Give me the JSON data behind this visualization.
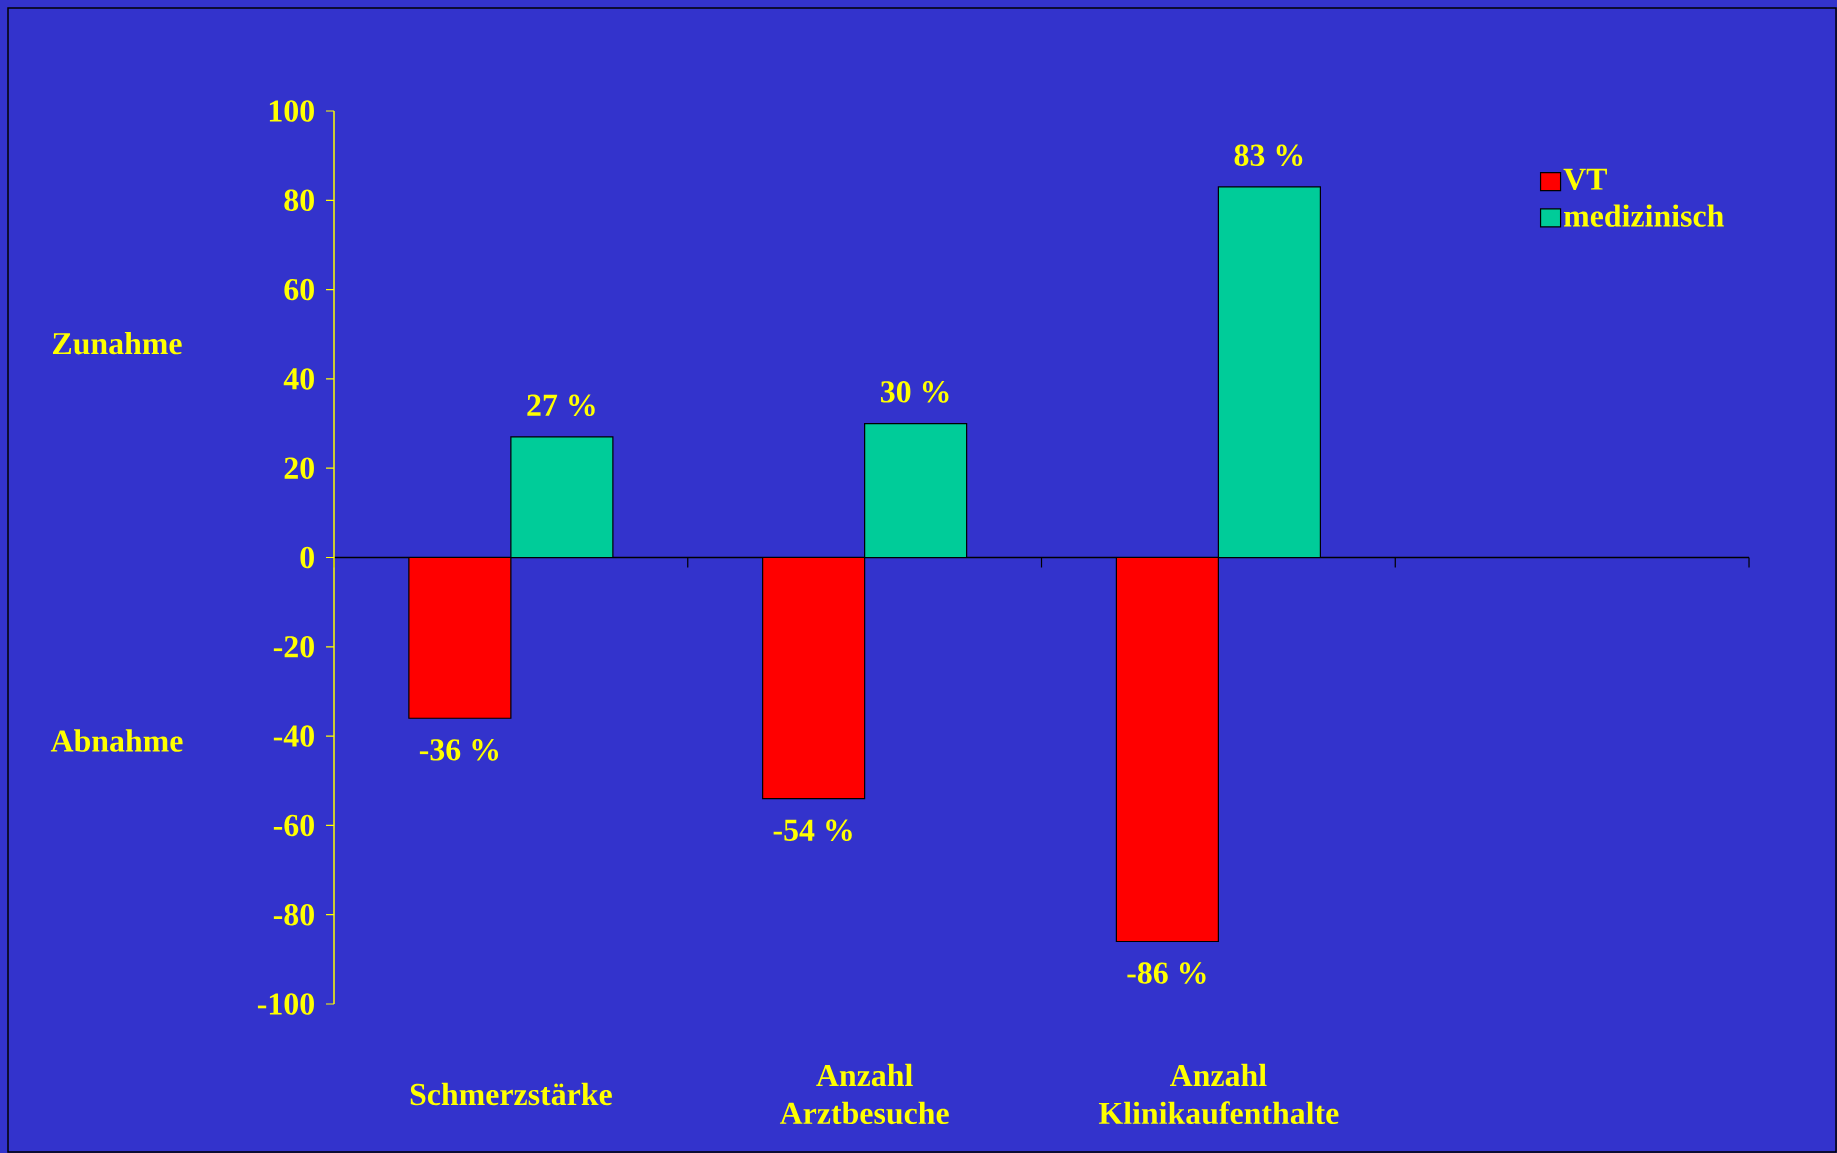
{
  "chart_data": {
    "type": "bar",
    "categories": [
      "Schmerzstärke",
      "Anzahl Arztbesuche",
      "Anzahl Klinikaufenthalte",
      null
    ],
    "series": [
      {
        "name": "VT",
        "color": "#ff0000",
        "values": [
          -36,
          -54,
          -86,
          null
        ],
        "value_labels": [
          "-36 %",
          "-54 %",
          "-86 %",
          null
        ]
      },
      {
        "name": "medizinisch",
        "color": "#00cc99",
        "values": [
          27,
          30,
          83,
          null
        ],
        "value_labels": [
          "27 %",
          "30 %",
          "83 %",
          null
        ]
      }
    ],
    "ylim": [
      -100,
      100
    ],
    "yticks": [
      -100,
      -80,
      -60,
      -40,
      -20,
      0,
      20,
      40,
      60,
      80,
      100
    ],
    "legend": "top right",
    "annotations": [
      "Zunahme",
      "Abnahme"
    ]
  }
}
